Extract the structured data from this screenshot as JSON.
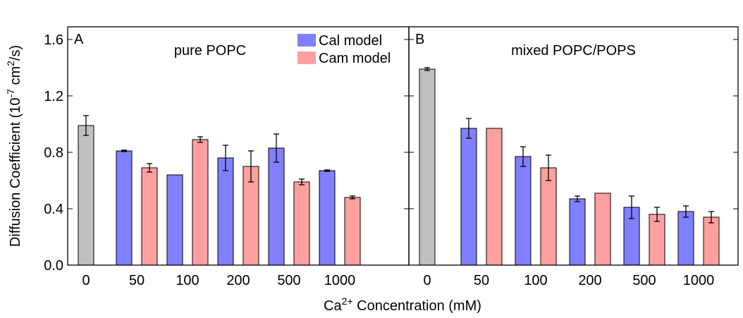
{
  "chart_data": [
    {
      "type": "bar",
      "panel_label": "A",
      "title": "pure POPC",
      "ylabel": [
        {
          "text": "Diffusion Coefficient (10"
        },
        {
          "text": "-7",
          "sup": true
        },
        {
          "text": " cm"
        },
        {
          "text": "2",
          "sup": true
        },
        {
          "text": "/s)"
        }
      ],
      "xlabel": [
        {
          "text": "Ca"
        },
        {
          "text": "2+",
          "sup": true
        },
        {
          "text": " Concentration (mM)"
        }
      ],
      "categories": [
        "0",
        "50",
        "100",
        "200",
        "500",
        "1000"
      ],
      "baseline": {
        "color": "#c0c0c0",
        "value": 0.99,
        "error": 0.07
      },
      "series": [
        {
          "name": "Cal model",
          "color": "#8080ff",
          "values": [
            null,
            0.81,
            0.64,
            0.76,
            0.83,
            0.67
          ],
          "errors": [
            null,
            0.005,
            null,
            0.09,
            0.1,
            0.005
          ]
        },
        {
          "name": "Cam model",
          "color": "#ffa0a0",
          "values": [
            null,
            0.69,
            0.89,
            0.7,
            0.59,
            0.48
          ],
          "errors": [
            null,
            0.03,
            0.02,
            0.11,
            0.02,
            0.01
          ]
        }
      ],
      "ylim": [
        0,
        1.69
      ],
      "yticks": [
        {
          "value": 0,
          "label": "0.0"
        },
        0.4,
        0.8,
        1.2,
        1.6
      ],
      "legend": "top-right"
    },
    {
      "type": "bar",
      "panel_label": "B",
      "title": "mixed POPC/POPS",
      "categories": [
        "0",
        "50",
        "100",
        "200",
        "500",
        "1000"
      ],
      "baseline": {
        "color": "#c0c0c0",
        "value": 1.39,
        "error": 0.01
      },
      "series": [
        {
          "color": "#8080ff",
          "values": [
            null,
            0.97,
            0.77,
            0.47,
            0.41,
            0.38
          ],
          "errors": [
            null,
            0.07,
            0.07,
            0.02,
            0.08,
            0.04
          ]
        },
        {
          "color": "#ffa0a0",
          "values": [
            null,
            0.97,
            0.69,
            0.51,
            0.36,
            0.34
          ],
          "errors": [
            null,
            null,
            0.09,
            null,
            0.05,
            0.04
          ]
        }
      ],
      "ylim": [
        0,
        1.69
      ]
    }
  ]
}
